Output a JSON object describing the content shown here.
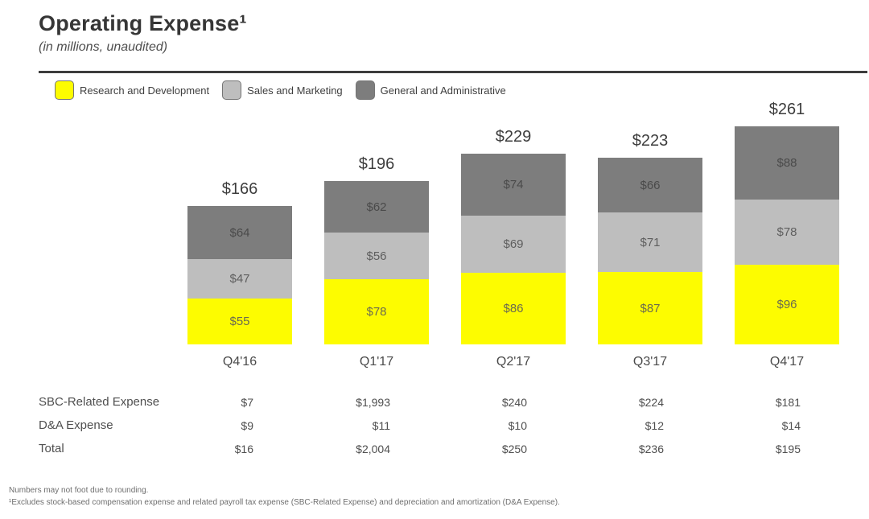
{
  "header": {
    "title": "Operating Expense¹",
    "subtitle": "(in millions, unaudited)"
  },
  "chart_data": {
    "type": "bar",
    "stacked": true,
    "title": "Operating Expense",
    "units": "millions USD",
    "legend_position": "top",
    "axes_visible": false,
    "categories": [
      "Q4'16",
      "Q1'17",
      "Q2'17",
      "Q3'17",
      "Q4'17"
    ],
    "series": [
      {
        "name": "Research and Development",
        "color": "#FDFC00",
        "label_color": "#6b6b50",
        "values": [
          55,
          78,
          86,
          87,
          96
        ],
        "labels": [
          "$55",
          "$78",
          "$86",
          "$87",
          "$96"
        ]
      },
      {
        "name": "Sales and Marketing",
        "color": "#BEBEBE",
        "label_color": "#5e5e5e",
        "values": [
          47,
          56,
          69,
          71,
          78
        ],
        "labels": [
          "$47",
          "$56",
          "$69",
          "$71",
          "$78"
        ]
      },
      {
        "name": "General and Administrative",
        "color": "#7D7D7D",
        "label_color": "#4a4a4a",
        "values": [
          64,
          62,
          74,
          66,
          88
        ],
        "labels": [
          "$64",
          "$62",
          "$74",
          "$66",
          "$88"
        ]
      }
    ],
    "totals": [
      "$166",
      "$196",
      "$229",
      "$223",
      "$261"
    ]
  },
  "table": {
    "rows": [
      {
        "label": "SBC-Related Expense",
        "values": [
          "$7",
          "$1,993",
          "$240",
          "$224",
          "$181"
        ]
      },
      {
        "label": "D&A Expense",
        "values": [
          "$9",
          "$11",
          "$10",
          "$12",
          "$14"
        ]
      },
      {
        "label": "Total",
        "values": [
          "$16",
          "$2,004",
          "$250",
          "$236",
          "$195"
        ]
      }
    ]
  },
  "footnotes": [
    "Numbers may not foot due to rounding.",
    "¹Excludes stock-based compensation expense and related payroll tax expense (SBC-Related Expense) and depreciation and amortization (D&A Expense)."
  ]
}
